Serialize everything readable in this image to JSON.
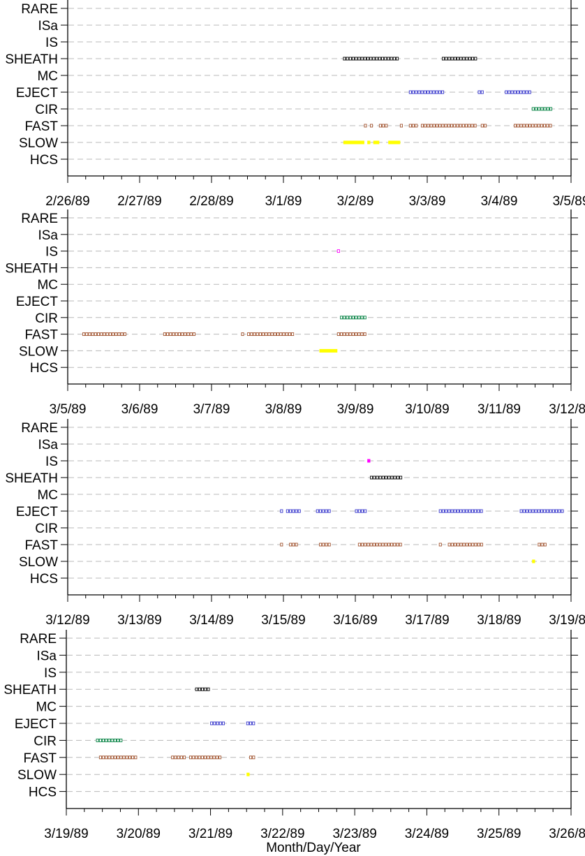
{
  "categories": [
    "RARE",
    "ISa",
    "IS",
    "SHEATH",
    "MC",
    "EJECT",
    "CIR",
    "FAST",
    "SLOW",
    "HCS"
  ],
  "colors": {
    "SHEATH": "#000000",
    "EJECT": "#3333cc",
    "CIR": "#008040",
    "FAST": "#a0522d",
    "SLOW": "#ffff00",
    "IS": "#ff00ff",
    "ISa": "#ff00ff",
    "MC": "#0000ff",
    "RARE": "#808080",
    "HCS": "#000000"
  },
  "xlabel": "Month/Day/Year",
  "chart_data": [
    {
      "type": "scatter",
      "x_ticks": [
        "2/26/89",
        "2/27/89",
        "2/28/89",
        "3/1/89",
        "3/2/89",
        "3/3/89",
        "3/4/89",
        "3/5/89"
      ],
      "xlim": [
        "1989-02-26",
        "1989-03-05"
      ],
      "segments": [
        {
          "category": "SHEATH",
          "start": "1989-03-01T20:00",
          "end": "1989-03-02T15:00",
          "style": "open"
        },
        {
          "category": "SHEATH",
          "start": "1989-03-03T05:00",
          "end": "1989-03-03T17:00",
          "style": "open"
        },
        {
          "category": "EJECT",
          "start": "1989-03-02T18:00",
          "end": "1989-03-03T06:00",
          "style": "open"
        },
        {
          "category": "EJECT",
          "start": "1989-03-03T17:00",
          "end": "1989-03-03T19:00",
          "style": "open"
        },
        {
          "category": "EJECT",
          "start": "1989-03-04T02:00",
          "end": "1989-03-04T11:00",
          "style": "open"
        },
        {
          "category": "CIR",
          "start": "1989-03-04T11:00",
          "end": "1989-03-04T18:00",
          "style": "open"
        },
        {
          "category": "FAST",
          "start": "1989-03-02T03:00",
          "end": "1989-03-02T04:00",
          "style": "open"
        },
        {
          "category": "FAST",
          "start": "1989-03-02T05:00",
          "end": "1989-03-02T06:00",
          "style": "open"
        },
        {
          "category": "FAST",
          "start": "1989-03-02T08:00",
          "end": "1989-03-02T11:00",
          "style": "open"
        },
        {
          "category": "FAST",
          "start": "1989-03-02T15:00",
          "end": "1989-03-02T16:00",
          "style": "open"
        },
        {
          "category": "FAST",
          "start": "1989-03-02T18:00",
          "end": "1989-03-02T21:00",
          "style": "open"
        },
        {
          "category": "FAST",
          "start": "1989-03-02T22:00",
          "end": "1989-03-03T17:00",
          "style": "open"
        },
        {
          "category": "FAST",
          "start": "1989-03-03T18:00",
          "end": "1989-03-03T20:00",
          "style": "open"
        },
        {
          "category": "FAST",
          "start": "1989-03-04T05:00",
          "end": "1989-03-04T18:00",
          "style": "open"
        },
        {
          "category": "SLOW",
          "start": "1989-03-01T20:00",
          "end": "1989-03-02T03:00",
          "style": "filled"
        },
        {
          "category": "SLOW",
          "start": "1989-03-02T04:00",
          "end": "1989-03-02T05:00",
          "style": "filled"
        },
        {
          "category": "SLOW",
          "start": "1989-03-02T06:00",
          "end": "1989-03-02T08:00",
          "style": "filled"
        },
        {
          "category": "SLOW",
          "start": "1989-03-02T11:00",
          "end": "1989-03-02T15:00",
          "style": "filled"
        }
      ]
    },
    {
      "type": "scatter",
      "x_ticks": [
        "3/5/89",
        "3/6/89",
        "3/7/89",
        "3/8/89",
        "3/9/89",
        "3/10/89",
        "3/11/89",
        "3/12/89"
      ],
      "xlim": [
        "1989-03-05",
        "1989-03-12"
      ],
      "segments": [
        {
          "category": "IS",
          "start": "1989-03-08T18:00",
          "end": "1989-03-08T19:00",
          "style": "open"
        },
        {
          "category": "CIR",
          "start": "1989-03-08T19:00",
          "end": "1989-03-09T04:00",
          "style": "open"
        },
        {
          "category": "FAST",
          "start": "1989-03-05T05:00",
          "end": "1989-03-05T20:00",
          "style": "open"
        },
        {
          "category": "FAST",
          "start": "1989-03-06T08:00",
          "end": "1989-03-06T19:00",
          "style": "open"
        },
        {
          "category": "FAST",
          "start": "1989-03-07T10:00",
          "end": "1989-03-07T11:00",
          "style": "open"
        },
        {
          "category": "FAST",
          "start": "1989-03-07T12:00",
          "end": "1989-03-08T04:00",
          "style": "open"
        },
        {
          "category": "FAST",
          "start": "1989-03-08T18:00",
          "end": "1989-03-09T04:00",
          "style": "open"
        },
        {
          "category": "SLOW",
          "start": "1989-03-08T12:00",
          "end": "1989-03-08T18:00",
          "style": "filled"
        }
      ]
    },
    {
      "type": "scatter",
      "x_ticks": [
        "3/12/89",
        "3/13/89",
        "3/14/89",
        "3/15/89",
        "3/16/89",
        "3/17/89",
        "3/18/89",
        "3/19/89"
      ],
      "xlim": [
        "1989-03-12",
        "1989-03-19"
      ],
      "segments": [
        {
          "category": "IS",
          "start": "1989-03-16T04:00",
          "end": "1989-03-16T05:00",
          "style": "filled"
        },
        {
          "category": "SHEATH",
          "start": "1989-03-16T05:00",
          "end": "1989-03-16T16:00",
          "style": "open"
        },
        {
          "category": "EJECT",
          "start": "1989-03-14T23:00",
          "end": "1989-03-15T00:00",
          "style": "open"
        },
        {
          "category": "EJECT",
          "start": "1989-03-15T01:00",
          "end": "1989-03-15T06:00",
          "style": "open"
        },
        {
          "category": "EJECT",
          "start": "1989-03-15T11:00",
          "end": "1989-03-15T16:00",
          "style": "open"
        },
        {
          "category": "EJECT",
          "start": "1989-03-16T00:00",
          "end": "1989-03-16T04:00",
          "style": "open"
        },
        {
          "category": "EJECT",
          "start": "1989-03-17T04:00",
          "end": "1989-03-17T19:00",
          "style": "open"
        },
        {
          "category": "EJECT",
          "start": "1989-03-18T07:00",
          "end": "1989-03-18T22:00",
          "style": "open"
        },
        {
          "category": "FAST",
          "start": "1989-03-14T23:00",
          "end": "1989-03-15T00:00",
          "style": "open"
        },
        {
          "category": "FAST",
          "start": "1989-03-15T02:00",
          "end": "1989-03-15T05:00",
          "style": "open"
        },
        {
          "category": "FAST",
          "start": "1989-03-15T12:00",
          "end": "1989-03-15T16:00",
          "style": "open"
        },
        {
          "category": "FAST",
          "start": "1989-03-16T01:00",
          "end": "1989-03-16T16:00",
          "style": "open"
        },
        {
          "category": "FAST",
          "start": "1989-03-17T04:00",
          "end": "1989-03-17T05:00",
          "style": "open"
        },
        {
          "category": "FAST",
          "start": "1989-03-17T07:00",
          "end": "1989-03-17T19:00",
          "style": "open"
        },
        {
          "category": "FAST",
          "start": "1989-03-18T13:00",
          "end": "1989-03-18T16:00",
          "style": "open"
        },
        {
          "category": "SLOW",
          "start": "1989-03-18T11:00",
          "end": "1989-03-18T12:00",
          "style": "filled"
        }
      ]
    },
    {
      "type": "scatter",
      "x_ticks": [
        "3/19/89",
        "3/20/89",
        "3/21/89",
        "3/22/89",
        "3/23/89",
        "3/24/89",
        "3/25/89",
        "3/26/89"
      ],
      "xlim": [
        "1989-03-19",
        "1989-03-26"
      ],
      "segments": [
        {
          "category": "SHEATH",
          "start": "1989-03-20T19:00",
          "end": "1989-03-21T00:00",
          "style": "open"
        },
        {
          "category": "EJECT",
          "start": "1989-03-21T00:00",
          "end": "1989-03-21T05:00",
          "style": "open"
        },
        {
          "category": "EJECT",
          "start": "1989-03-21T12:00",
          "end": "1989-03-21T15:00",
          "style": "open"
        },
        {
          "category": "CIR",
          "start": "1989-03-19T10:00",
          "end": "1989-03-19T19:00",
          "style": "open"
        },
        {
          "category": "FAST",
          "start": "1989-03-19T11:00",
          "end": "1989-03-20T00:00",
          "style": "open"
        },
        {
          "category": "FAST",
          "start": "1989-03-20T11:00",
          "end": "1989-03-20T16:00",
          "style": "open"
        },
        {
          "category": "FAST",
          "start": "1989-03-20T17:00",
          "end": "1989-03-21T04:00",
          "style": "open"
        },
        {
          "category": "FAST",
          "start": "1989-03-21T13:00",
          "end": "1989-03-21T15:00",
          "style": "open"
        },
        {
          "category": "SLOW",
          "start": "1989-03-21T12:00",
          "end": "1989-03-21T13:00",
          "style": "filled"
        }
      ]
    }
  ]
}
